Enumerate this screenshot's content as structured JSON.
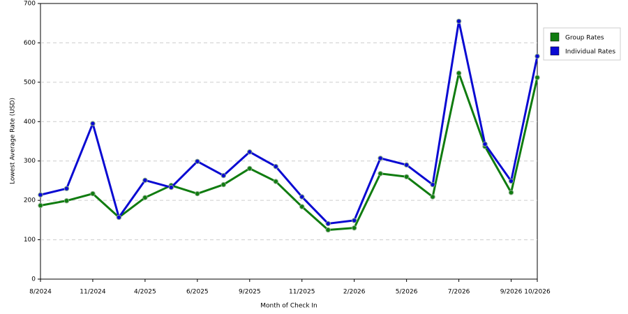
{
  "chart_data": {
    "type": "line",
    "x_label": "Month of Check In",
    "y_label": "Lowest Average Rate (USD)",
    "categories": [
      "8/2024",
      null,
      "11/2024",
      null,
      "4/2025",
      null,
      "6/2025",
      null,
      "9/2025",
      null,
      "11/2025",
      null,
      "2/2026",
      null,
      "5/2026",
      null,
      "7/2026",
      null,
      "9/2026",
      "10/2026"
    ],
    "series": [
      {
        "name": "Group Rates",
        "color": "#107c10",
        "values": [
          187,
          199,
          217,
          157,
          207,
          238,
          217,
          240,
          281,
          248,
          184,
          125,
          130,
          268,
          260,
          209,
          523,
          337,
          220,
          512
        ]
      },
      {
        "name": "Individual Rates",
        "color": "#0a0ad2",
        "values": [
          214,
          230,
          395,
          157,
          251,
          233,
          299,
          263,
          323,
          286,
          209,
          141,
          149,
          307,
          290,
          240,
          655,
          343,
          249,
          566
        ]
      }
    ],
    "ylim": [
      0,
      700
    ],
    "yticks": [
      0,
      100,
      200,
      300,
      400,
      500,
      600,
      700
    ],
    "grid": true,
    "legend": "right"
  }
}
